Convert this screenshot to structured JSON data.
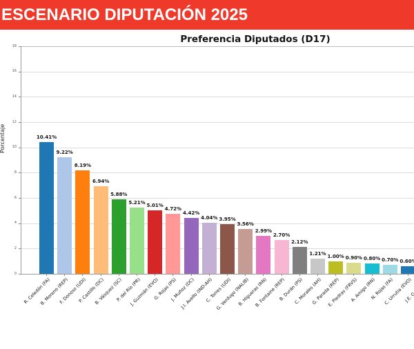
{
  "header": {
    "title": "ESCENARIO DIPUTACIÓN 2025",
    "bg_color": "#ee392b",
    "text_color": "#ffffff"
  },
  "chart_data": {
    "type": "bar",
    "title": "Preferencia Diputados (D17)",
    "xlabel": "",
    "ylabel": "Porcentaje",
    "ylim": [
      0,
      18
    ],
    "yticks": [
      0,
      2,
      4,
      6,
      8,
      10,
      12,
      14,
      16,
      18
    ],
    "grid": "horizontal",
    "legend_position": "none",
    "value_label_suffix": "%",
    "categories": [
      "R. Celedón (FA)",
      "B. Moreno (REP)",
      "F. Donoso (UDI)",
      "P. Castillo (DC)",
      "B. Vásquez (SC)",
      "P. del Río (PR)",
      "J. Guzmán (EVO)",
      "G. Rojas (PS)",
      "J. Muñoz (DC)",
      "J.I. Avello (IND-AH)",
      "C. Torres (UDI)",
      "G. Verdugo (NALIB)",
      "B. Higueras (RN)",
      "B. Fontaine (REP)",
      "B. Durán (PS)",
      "C. Morales (AH)",
      "G. Parada (REP)",
      "E. Piedras (FRVS)",
      "A. Amigo (RN)",
      "N. Rojas (FA)",
      "C. Urrutia (EVO)"
    ],
    "values": [
      10.41,
      9.22,
      8.19,
      6.94,
      5.88,
      5.21,
      5.01,
      4.72,
      4.42,
      4.04,
      3.95,
      3.56,
      2.99,
      2.7,
      2.12,
      1.21,
      1.0,
      0.9,
      0.8,
      0.7,
      0.6
    ],
    "bar_colors": [
      "#1f77b4",
      "#aec7e8",
      "#ff7f0e",
      "#ffbb78",
      "#2ca02c",
      "#98df8a",
      "#d62728",
      "#ff9896",
      "#9467bd",
      "#c5b0d5",
      "#8c564b",
      "#c49c94",
      "#e377c2",
      "#f7b6d2",
      "#7f7f7f",
      "#c7c7c7",
      "#bcbd22",
      "#dbdb8d",
      "#17becf",
      "#9edae5",
      "#1f77b4"
    ],
    "clipped_extra_categories": [
      "J.E. González (",
      "M. C"
    ]
  }
}
